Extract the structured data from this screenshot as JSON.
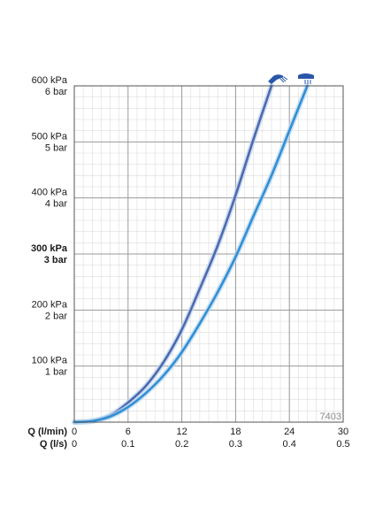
{
  "chart_data": {
    "type": "line",
    "x_axis_primary": {
      "label": "Q (l/min)",
      "ticks": [
        "0",
        "6",
        "12",
        "18",
        "24",
        "30"
      ],
      "range": [
        0,
        30
      ]
    },
    "x_axis_secondary": {
      "label": "Q (l/s)",
      "ticks": [
        "0",
        "0.1",
        "0.2",
        "0.3",
        "0.4",
        "0.5"
      ]
    },
    "y_axis": {
      "range": [
        0,
        600
      ],
      "ticks": [
        {
          "value": 600,
          "line1": "600 kPa",
          "line2": "6 bar",
          "bold": false
        },
        {
          "value": 500,
          "line1": "500 kPa",
          "line2": "5 bar",
          "bold": false
        },
        {
          "value": 400,
          "line1": "400 kPa",
          "line2": "4 bar",
          "bold": false
        },
        {
          "value": 300,
          "line1": "300 kPa",
          "line2": "3 bar",
          "bold": true
        },
        {
          "value": 200,
          "line1": "200 kPa",
          "line2": "2 bar",
          "bold": false
        },
        {
          "value": 100,
          "line1": "100 kPa",
          "line2": "1 bar",
          "bold": false
        }
      ]
    },
    "grid": true,
    "series": [
      {
        "icon": "hand-shower-icon",
        "color": "#5068b0",
        "points": [
          [
            0,
            0
          ],
          [
            2,
            2
          ],
          [
            4,
            12
          ],
          [
            6,
            35
          ],
          [
            8,
            65
          ],
          [
            10,
            108
          ],
          [
            12,
            165
          ],
          [
            14,
            238
          ],
          [
            16,
            315
          ],
          [
            18,
            405
          ],
          [
            20,
            505
          ],
          [
            22,
            600
          ]
        ]
      },
      {
        "icon": "overhead-shower-icon",
        "color": "#2f8fd6",
        "points": [
          [
            0,
            0
          ],
          [
            2,
            2
          ],
          [
            4,
            10
          ],
          [
            6,
            27
          ],
          [
            8,
            52
          ],
          [
            10,
            84
          ],
          [
            12,
            125
          ],
          [
            14,
            176
          ],
          [
            16,
            232
          ],
          [
            18,
            295
          ],
          [
            20,
            368
          ],
          [
            22,
            440
          ],
          [
            24,
            520
          ],
          [
            26,
            600
          ]
        ]
      }
    ]
  },
  "code_label": "7403"
}
